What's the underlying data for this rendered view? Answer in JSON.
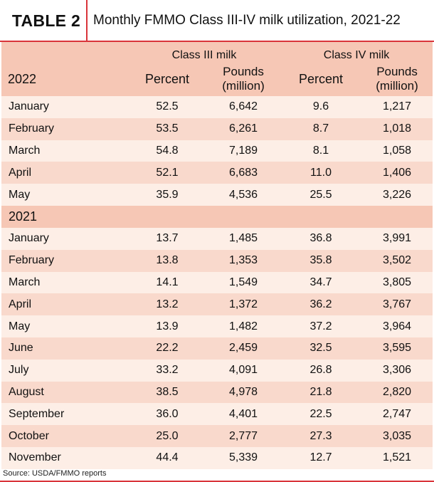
{
  "header": {
    "tag": "TABLE 2",
    "title": "Monthly FMMO Class III-IV milk utilization, 2021-22"
  },
  "table": {
    "group_headers": [
      "Class III milk",
      "Class IV milk"
    ],
    "year_2022_label": "2022",
    "col_headers": {
      "percent_a": "Percent",
      "pounds_a_line1": "Pounds",
      "pounds_a_line2": "(million)",
      "percent_b": "Percent",
      "pounds_b_line1": "Pounds",
      "pounds_b_line2": "(million)"
    },
    "rows_2022": [
      [
        "January",
        "52.5",
        "6,642",
        "9.6",
        "1,217"
      ],
      [
        "February",
        "53.5",
        "6,261",
        "8.7",
        "1,018"
      ],
      [
        "March",
        "54.8",
        "7,189",
        "8.1",
        "1,058"
      ],
      [
        "April",
        "52.1",
        "6,683",
        "11.0",
        "1,406"
      ],
      [
        "May",
        "35.9",
        "4,536",
        "25.5",
        "3,226"
      ]
    ],
    "year_2021_label": "2021",
    "rows_2021": [
      [
        "January",
        "13.7",
        "1,485",
        "36.8",
        "3,991"
      ],
      [
        "February",
        "13.8",
        "1,353",
        "35.8",
        "3,502"
      ],
      [
        "March",
        "14.1",
        "1,549",
        "34.7",
        "3,805"
      ],
      [
        "April",
        "13.2",
        "1,372",
        "36.2",
        "3,767"
      ],
      [
        "May",
        "13.9",
        "1,482",
        "37.2",
        "3,964"
      ],
      [
        "June",
        "22.2",
        "2,459",
        "32.5",
        "3,595"
      ],
      [
        "July",
        "33.2",
        "4,091",
        "26.8",
        "3,306"
      ],
      [
        "August",
        "38.5",
        "4,978",
        "21.8",
        "2,820"
      ],
      [
        "September",
        "36.0",
        "4,401",
        "22.5",
        "2,747"
      ],
      [
        "October",
        "25.0",
        "2,777",
        "27.3",
        "3,035"
      ],
      [
        "November",
        "44.4",
        "5,339",
        "12.7",
        "1,521"
      ]
    ]
  },
  "source": "Source: USDA/FMMO reports",
  "colors": {
    "accent_red": "#d9343a",
    "header_fill": "#f6c7b5",
    "row_light": "#fdeee6",
    "row_dark": "#f9d9cc"
  }
}
